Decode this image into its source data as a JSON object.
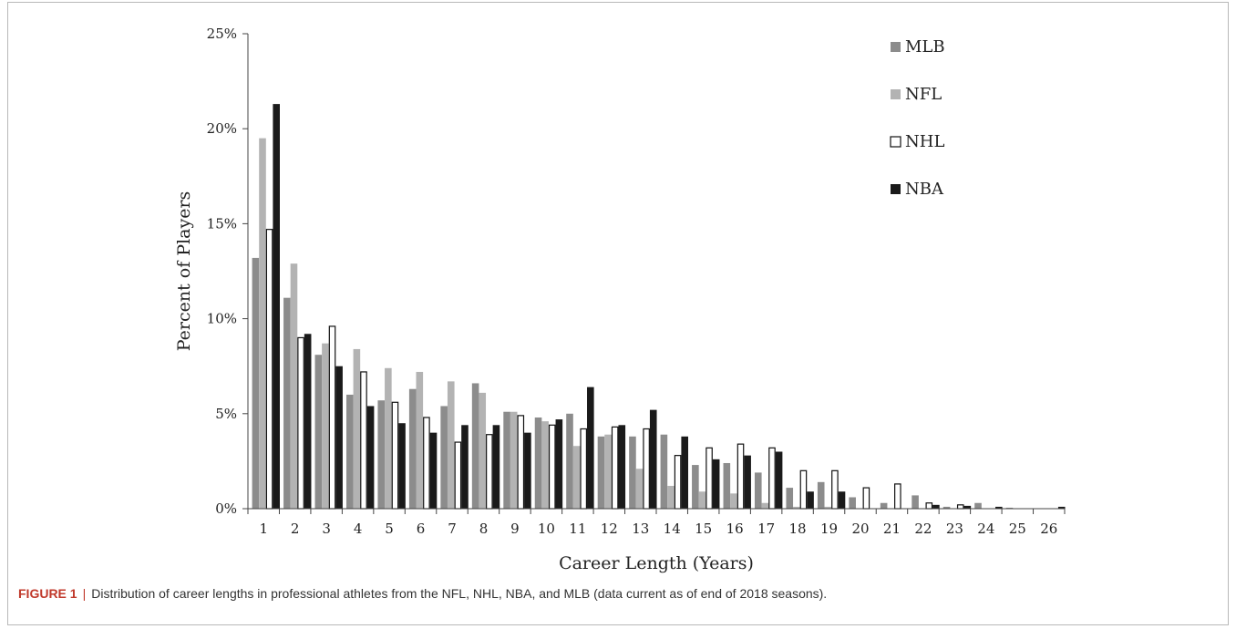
{
  "caption": {
    "label": "FIGURE 1",
    "separator": "|",
    "text": "Distribution of career lengths in professional athletes from the NFL, NHL, NBA, and MLB (data current as of end of 2018 seasons)."
  },
  "chart_data": {
    "type": "bar",
    "title": "",
    "xlabel": "Career Length (Years)",
    "ylabel": "Percent of Players",
    "ylim": [
      0,
      25
    ],
    "yticks": [
      "0%",
      "5%",
      "10%",
      "15%",
      "20%",
      "25%"
    ],
    "grid": false,
    "legend_position": "top-right",
    "categories": [
      "1",
      "2",
      "3",
      "4",
      "5",
      "6",
      "7",
      "8",
      "9",
      "10",
      "11",
      "12",
      "13",
      "14",
      "15",
      "16",
      "17",
      "18",
      "19",
      "20",
      "21",
      "22",
      "23",
      "24",
      "25",
      "26"
    ],
    "series": [
      {
        "name": "MLB",
        "color": "#8c8c8c",
        "outline": false,
        "values": [
          13.2,
          11.1,
          8.1,
          6.0,
          5.7,
          6.3,
          5.4,
          6.6,
          5.1,
          4.8,
          5.0,
          3.8,
          3.8,
          3.9,
          2.3,
          2.4,
          1.9,
          1.1,
          1.4,
          0.6,
          0.3,
          0.7,
          0.1,
          0.3,
          0.05,
          0.0
        ]
      },
      {
        "name": "NFL",
        "color": "#b3b3b3",
        "outline": false,
        "values": [
          19.5,
          12.9,
          8.7,
          8.4,
          7.4,
          7.2,
          6.7,
          6.1,
          5.1,
          4.6,
          3.3,
          3.9,
          2.1,
          1.2,
          0.9,
          0.8,
          0.3,
          0.1,
          0.1,
          0.0,
          0.0,
          0.0,
          0.0,
          0.0,
          0.0,
          0.0
        ]
      },
      {
        "name": "NHL",
        "color": "#ffffff",
        "outline": true,
        "values": [
          14.7,
          9.0,
          9.6,
          7.2,
          5.6,
          4.8,
          3.5,
          3.9,
          4.9,
          4.4,
          4.2,
          4.3,
          4.2,
          2.8,
          3.2,
          3.4,
          3.2,
          2.0,
          2.0,
          1.1,
          1.3,
          0.3,
          0.2,
          0.0,
          0.0,
          0.0
        ]
      },
      {
        "name": "NBA",
        "color": "#1a1a1a",
        "outline": false,
        "values": [
          21.3,
          9.2,
          7.5,
          5.4,
          4.5,
          4.0,
          4.4,
          4.4,
          4.0,
          4.7,
          6.4,
          4.4,
          5.2,
          3.8,
          2.6,
          2.8,
          3.0,
          0.9,
          0.9,
          0.0,
          0.0,
          0.2,
          0.15,
          0.1,
          0.0,
          0.1
        ]
      }
    ]
  }
}
